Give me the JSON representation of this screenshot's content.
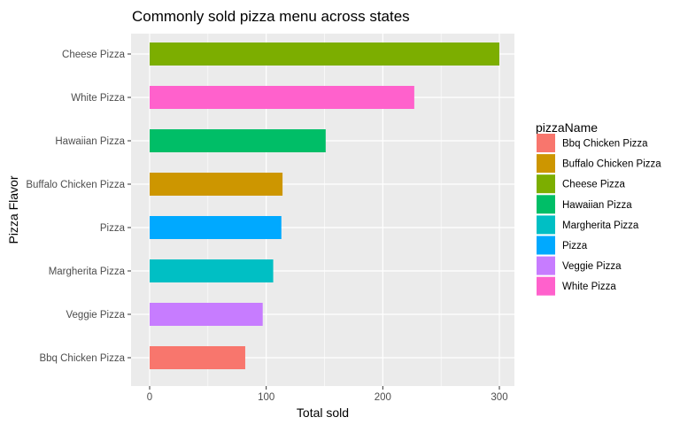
{
  "chart_data": {
    "type": "bar",
    "orientation": "horizontal",
    "title": "Commonly sold pizza menu across states",
    "xlabel": "Total sold",
    "ylabel": "Pizza Flavor",
    "xlim": [
      0,
      300
    ],
    "xticks": [
      0,
      100,
      200,
      300
    ],
    "grid": true,
    "legend_title": "pizzaName",
    "legend_position": "right",
    "categories": [
      "Cheese Pizza",
      "White Pizza",
      "Hawaiian Pizza",
      "Buffalo Chicken Pizza",
      "Pizza",
      "Margherita Pizza",
      "Veggie Pizza",
      "Bbq Chicken Pizza"
    ],
    "values": [
      300,
      227,
      151,
      114,
      113,
      106,
      97,
      82
    ],
    "bar_colors": {
      "Cheese Pizza": "#7CAE00",
      "White Pizza": "#FF61CC",
      "Hawaiian Pizza": "#00BE67",
      "Buffalo Chicken Pizza": "#CD9600",
      "Pizza": "#00A9FF",
      "Margherita Pizza": "#00BFC4",
      "Veggie Pizza": "#C77CFF",
      "Bbq Chicken Pizza": "#F8766D"
    },
    "legend_entries": [
      {
        "label": "Bbq Chicken Pizza",
        "color": "#F8766D"
      },
      {
        "label": "Buffalo Chicken Pizza",
        "color": "#CD9600"
      },
      {
        "label": "Cheese Pizza",
        "color": "#7CAE00"
      },
      {
        "label": "Hawaiian Pizza",
        "color": "#00BE67"
      },
      {
        "label": "Margherita Pizza",
        "color": "#00BFC4"
      },
      {
        "label": "Pizza",
        "color": "#00A9FF"
      },
      {
        "label": "Veggie Pizza",
        "color": "#C77CFF"
      },
      {
        "label": "White Pizza",
        "color": "#FF61CC"
      }
    ],
    "panel_background": "#EBEBEB",
    "grid_color": "#FFFFFF"
  }
}
